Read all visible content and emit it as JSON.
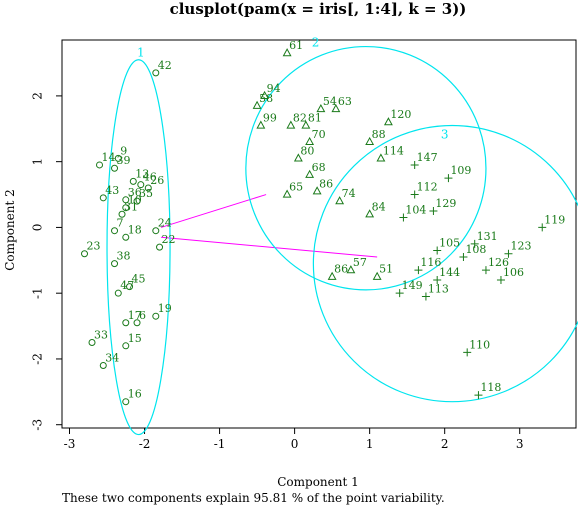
{
  "chart_data": {
    "type": "scatter",
    "title": "clusplot(pam(x = iris[, 1:4], k = 3))",
    "xlabel": "Component 1",
    "ylabel": "Component 2",
    "xlim": [
      -3.1,
      3.75
    ],
    "ylim": [
      -3.05,
      2.85
    ],
    "xticks": [
      -3,
      -2,
      -1,
      0,
      1,
      2,
      3
    ],
    "yticks": [
      -3,
      -2,
      -1,
      0,
      1,
      2
    ],
    "note": "These two components explain 95.81 % of the point variability.",
    "colors": {
      "points": "#1a7a1a",
      "ellipses": "#00e5ee",
      "links": "#ff00ff",
      "text": "#000000"
    },
    "clusters": [
      {
        "label": "1",
        "marker": "circle",
        "center": [
          -2.08,
          -0.3
        ],
        "semi_axes": [
          0.42,
          2.85
        ],
        "angle_deg": 0,
        "label_pos": [
          -2.05,
          2.6
        ]
      },
      {
        "label": "2",
        "marker": "triangle",
        "center": [
          0.95,
          0.9
        ],
        "semi_axes": [
          1.6,
          1.85
        ],
        "angle_deg": 0,
        "label_pos": [
          0.28,
          2.75
        ]
      },
      {
        "label": "3",
        "marker": "plus",
        "center": [
          2.1,
          -0.55
        ],
        "semi_axes": [
          1.85,
          2.1
        ],
        "angle_deg": 0,
        "label_pos": [
          2.0,
          1.35
        ]
      }
    ],
    "links": [
      {
        "from": [
          -1.78,
          0.0
        ],
        "to": [
          -0.38,
          0.5
        ]
      },
      {
        "from": [
          -1.78,
          -0.15
        ],
        "to": [
          1.1,
          -0.45
        ]
      }
    ],
    "points": [
      {
        "label": "42",
        "x": -1.85,
        "y": 2.35,
        "cluster": 1
      },
      {
        "label": "14",
        "x": -2.6,
        "y": 0.95,
        "cluster": 1
      },
      {
        "label": "9",
        "x": -2.35,
        "y": 1.05,
        "cluster": 1
      },
      {
        "label": "39",
        "x": -2.4,
        "y": 0.9,
        "cluster": 1
      },
      {
        "label": "13",
        "x": -2.15,
        "y": 0.7,
        "cluster": 1
      },
      {
        "label": "46",
        "x": -2.05,
        "y": 0.65,
        "cluster": 1
      },
      {
        "label": "26",
        "x": -1.95,
        "y": 0.6,
        "cluster": 1
      },
      {
        "label": "43",
        "x": -2.55,
        "y": 0.45,
        "cluster": 1
      },
      {
        "label": "36",
        "x": -2.25,
        "y": 0.42,
        "cluster": 1
      },
      {
        "label": "35",
        "x": -2.1,
        "y": 0.4,
        "cluster": 1
      },
      {
        "label": "10",
        "x": -2.25,
        "y": 0.3,
        "cluster": 1
      },
      {
        "label": "31",
        "x": -2.3,
        "y": 0.2,
        "cluster": 1
      },
      {
        "label": "7",
        "x": -2.4,
        "y": -0.05,
        "cluster": 1
      },
      {
        "label": "18",
        "x": -2.25,
        "y": -0.15,
        "cluster": 1
      },
      {
        "label": "24",
        "x": -1.85,
        "y": -0.05,
        "cluster": 1
      },
      {
        "label": "23",
        "x": -2.8,
        "y": -0.4,
        "cluster": 1
      },
      {
        "label": "38",
        "x": -2.4,
        "y": -0.55,
        "cluster": 1
      },
      {
        "label": "22",
        "x": -1.8,
        "y": -0.3,
        "cluster": 1
      },
      {
        "label": "47",
        "x": -2.35,
        "y": -1.0,
        "cluster": 1
      },
      {
        "label": "45",
        "x": -2.2,
        "y": -0.9,
        "cluster": 1
      },
      {
        "label": "17",
        "x": -2.25,
        "y": -1.45,
        "cluster": 1
      },
      {
        "label": "6",
        "x": -2.1,
        "y": -1.45,
        "cluster": 1
      },
      {
        "label": "19",
        "x": -1.85,
        "y": -1.35,
        "cluster": 1
      },
      {
        "label": "33",
        "x": -2.7,
        "y": -1.75,
        "cluster": 1
      },
      {
        "label": "15",
        "x": -2.25,
        "y": -1.8,
        "cluster": 1
      },
      {
        "label": "34",
        "x": -2.55,
        "y": -2.1,
        "cluster": 1
      },
      {
        "label": "16",
        "x": -2.25,
        "y": -2.65,
        "cluster": 1
      },
      {
        "label": "61",
        "x": -0.1,
        "y": 2.65,
        "cluster": 2
      },
      {
        "label": "94",
        "x": -0.4,
        "y": 2.0,
        "cluster": 2
      },
      {
        "label": "58",
        "x": -0.5,
        "y": 1.85,
        "cluster": 2
      },
      {
        "label": "99",
        "x": -0.45,
        "y": 1.55,
        "cluster": 2
      },
      {
        "label": "54",
        "x": 0.35,
        "y": 1.8,
        "cluster": 2
      },
      {
        "label": "63",
        "x": 0.55,
        "y": 1.8,
        "cluster": 2
      },
      {
        "label": "82",
        "x": -0.05,
        "y": 1.55,
        "cluster": 2
      },
      {
        "label": "81",
        "x": 0.15,
        "y": 1.55,
        "cluster": 2
      },
      {
        "label": "70",
        "x": 0.2,
        "y": 1.3,
        "cluster": 2
      },
      {
        "label": "80",
        "x": 0.05,
        "y": 1.05,
        "cluster": 2
      },
      {
        "label": "68",
        "x": 0.2,
        "y": 0.8,
        "cluster": 2
      },
      {
        "label": "65",
        "x": -0.1,
        "y": 0.5,
        "cluster": 2
      },
      {
        "label": "86",
        "x": 0.3,
        "y": 0.55,
        "cluster": 2
      },
      {
        "label": "88",
        "x": 1.0,
        "y": 1.3,
        "cluster": 2
      },
      {
        "label": "120",
        "x": 1.25,
        "y": 1.6,
        "cluster": 2
      },
      {
        "label": "114",
        "x": 1.15,
        "y": 1.05,
        "cluster": 2
      },
      {
        "label": "74",
        "x": 0.6,
        "y": 0.4,
        "cluster": 2
      },
      {
        "label": "84",
        "x": 1.0,
        "y": 0.2,
        "cluster": 2
      },
      {
        "label": "86",
        "x": 0.5,
        "y": -0.75,
        "cluster": 2
      },
      {
        "label": "57",
        "x": 0.75,
        "y": -0.65,
        "cluster": 2
      },
      {
        "label": "51",
        "x": 1.1,
        "y": -0.75,
        "cluster": 2
      },
      {
        "label": "147",
        "x": 1.6,
        "y": 0.95,
        "cluster": 3
      },
      {
        "label": "109",
        "x": 2.05,
        "y": 0.75,
        "cluster": 3
      },
      {
        "label": "112",
        "x": 1.6,
        "y": 0.5,
        "cluster": 3
      },
      {
        "label": "129",
        "x": 1.85,
        "y": 0.25,
        "cluster": 3
      },
      {
        "label": "104",
        "x": 1.45,
        "y": 0.15,
        "cluster": 3
      },
      {
        "label": "119",
        "x": 3.3,
        "y": 0.0,
        "cluster": 3
      },
      {
        "label": "131",
        "x": 2.4,
        "y": -0.25,
        "cluster": 3
      },
      {
        "label": "123",
        "x": 2.85,
        "y": -0.4,
        "cluster": 3
      },
      {
        "label": "105",
        "x": 1.9,
        "y": -0.35,
        "cluster": 3
      },
      {
        "label": "108",
        "x": 2.25,
        "y": -0.45,
        "cluster": 3
      },
      {
        "label": "106",
        "x": 2.75,
        "y": -0.8,
        "cluster": 3
      },
      {
        "label": "126",
        "x": 2.55,
        "y": -0.65,
        "cluster": 3
      },
      {
        "label": "116",
        "x": 1.65,
        "y": -0.65,
        "cluster": 3
      },
      {
        "label": "144",
        "x": 1.9,
        "y": -0.8,
        "cluster": 3
      },
      {
        "label": "149",
        "x": 1.4,
        "y": -1.0,
        "cluster": 3
      },
      {
        "label": "113",
        "x": 1.75,
        "y": -1.05,
        "cluster": 3
      },
      {
        "label": "110",
        "x": 2.3,
        "y": -1.9,
        "cluster": 3
      },
      {
        "label": "118",
        "x": 2.45,
        "y": -2.55,
        "cluster": 3
      }
    ]
  }
}
